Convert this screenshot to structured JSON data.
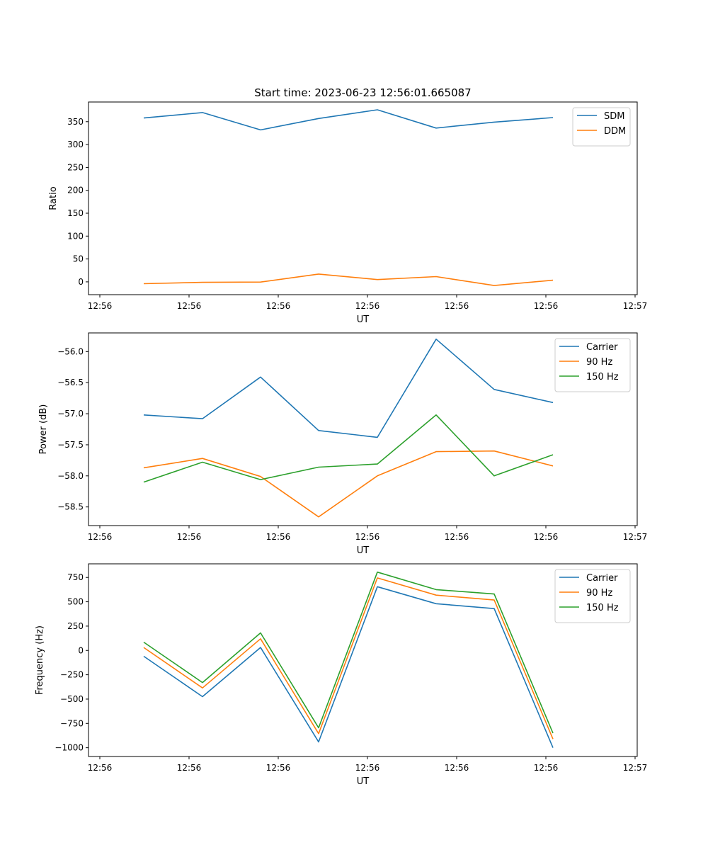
{
  "chart_data": [
    {
      "type": "line",
      "title": "Start time: 2023-06-23 12:56:01.665087",
      "xlabel": "UT",
      "ylabel": "Ratio",
      "xtick_labels": [
        "12:56",
        "12:56",
        "12:56",
        "12:56",
        "12:56",
        "12:56",
        "12:57"
      ],
      "yticks": [
        0,
        50,
        100,
        150,
        200,
        250,
        300,
        350
      ],
      "ylim": [
        -28,
        393
      ],
      "legend_position": "upper right",
      "series": [
        {
          "name": "SDM",
          "color": "#1f77b4",
          "values": [
            358,
            370,
            332,
            357,
            376,
            336,
            349,
            359
          ]
        },
        {
          "name": "DDM",
          "color": "#ff7f0e",
          "values": [
            -4,
            -1,
            -0.5,
            17,
            5,
            11.5,
            -8,
            3.5
          ]
        }
      ]
    },
    {
      "type": "line",
      "title": "",
      "xlabel": "UT",
      "ylabel": "Power (dB)",
      "xtick_labels": [
        "12:56",
        "12:56",
        "12:56",
        "12:56",
        "12:56",
        "12:56",
        "12:57"
      ],
      "yticks": [
        -58.5,
        -58.0,
        -57.5,
        -57.0,
        -56.5,
        -56.0
      ],
      "ytick_labels": [
        "−58.5",
        "−58.0",
        "−57.5",
        "−57.0",
        "−56.5",
        "−56.0"
      ],
      "ylim": [
        -58.8,
        -55.7
      ],
      "legend_position": "upper right",
      "series": [
        {
          "name": "Carrier",
          "color": "#1f77b4",
          "values": [
            -57.02,
            -57.08,
            -56.41,
            -57.27,
            -57.38,
            -55.8,
            -56.61,
            -56.82
          ]
        },
        {
          "name": "90 Hz",
          "color": "#ff7f0e",
          "values": [
            -57.87,
            -57.72,
            -58.01,
            -58.66,
            -58.0,
            -57.61,
            -57.6,
            -57.84
          ]
        },
        {
          "name": "150 Hz",
          "color": "#2ca02c",
          "values": [
            -58.1,
            -57.78,
            -58.06,
            -57.86,
            -57.81,
            -57.02,
            -58.0,
            -57.66
          ]
        }
      ]
    },
    {
      "type": "line",
      "title": "",
      "xlabel": "UT",
      "ylabel": "Frequency (Hz)",
      "xtick_labels": [
        "12:56",
        "12:56",
        "12:56",
        "12:56",
        "12:56",
        "12:56",
        "12:57"
      ],
      "yticks": [
        -1000,
        -750,
        -500,
        -250,
        0,
        250,
        500,
        750
      ],
      "ytick_labels": [
        "−1000",
        "−750",
        "−500",
        "−250",
        "0",
        "250",
        "500",
        "750"
      ],
      "ylim": [
        -1090,
        890
      ],
      "legend_position": "upper right",
      "series": [
        {
          "name": "Carrier",
          "color": "#1f77b4",
          "values": [
            -60,
            -475,
            30,
            -940,
            655,
            480,
            430,
            -1000
          ]
        },
        {
          "name": "90 Hz",
          "color": "#ff7f0e",
          "values": [
            30,
            -385,
            120,
            -855,
            745,
            568,
            518,
            -910
          ]
        },
        {
          "name": "150 Hz",
          "color": "#2ca02c",
          "values": [
            85,
            -330,
            180,
            -795,
            805,
            625,
            580,
            -850
          ]
        }
      ]
    }
  ]
}
